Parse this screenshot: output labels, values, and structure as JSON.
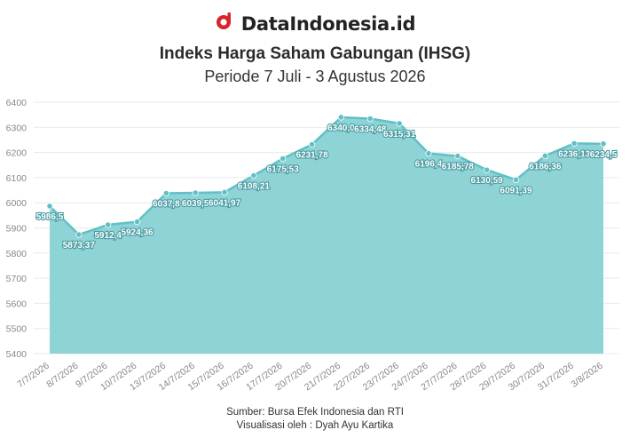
{
  "brand": {
    "name": "DataIndonesia.id",
    "logo_icon": "dataindonesia-logo-icon",
    "logo_color": "#d9232d"
  },
  "header": {
    "title": "Indeks Harga Saham Gabungan (IHSG)",
    "subtitle": "Periode 7 Juli - 3 Agustus 2026"
  },
  "footer": {
    "source": "Sumber: Bursa Efek Indonesia dan RTI",
    "credit": "Visualisasi oleh : Dyah Ayu Kartika"
  },
  "chart_data": {
    "type": "area",
    "title": "Indeks Harga Saham Gabungan (IHSG)",
    "subtitle": "Periode 7 Juli - 3 Agustus 2026",
    "categories": [
      "7/7/2026",
      "8/7/2026",
      "9/7/2026",
      "10/7/2026",
      "13/7/2026",
      "14/7/2026",
      "15/7/2026",
      "16/7/2026",
      "17/7/2026",
      "20/7/2026",
      "21/7/2026",
      "22/7/2026",
      "23/7/2026",
      "24/7/2026",
      "27/7/2026",
      "28/7/2026",
      "29/7/2026",
      "30/7/2026",
      "31/7/2026",
      "3/8/2026"
    ],
    "values": [
      5986.5,
      5873.37,
      5912.4,
      5924.36,
      6037.8,
      6039.5,
      6041.97,
      6108.21,
      6175.53,
      6231.78,
      6340.0,
      6334.48,
      6315.31,
      6196.4,
      6185.78,
      6130.59,
      6091.39,
      6186.36,
      6236.13,
      6234.5
    ],
    "data_labels": [
      "5986,5",
      "5873,37",
      "5912,4",
      "5924,36",
      "6037,8",
      "6039,5",
      "6041,97",
      "6108,21",
      "6175,53",
      "6231,78",
      "6340,0",
      "6334,48",
      "6315,31",
      "6196,4",
      "6185,78",
      "6130,59",
      "6091,39",
      "6186,36",
      "6236,13",
      "6234,5"
    ],
    "yticks": [
      5400,
      5500,
      5600,
      5700,
      5800,
      5900,
      6000,
      6100,
      6200,
      6300,
      6400
    ],
    "ylim": [
      5400,
      6400
    ],
    "xlabel": "",
    "ylabel": "",
    "grid": true,
    "legend": "none",
    "colors": {
      "fill": "#8ed3d6",
      "line": "#5fc1c6",
      "marker": "#5fc1c6",
      "label_text": "#ffffff",
      "tick_text": "#888888",
      "grid": "#e9e9e9"
    }
  }
}
